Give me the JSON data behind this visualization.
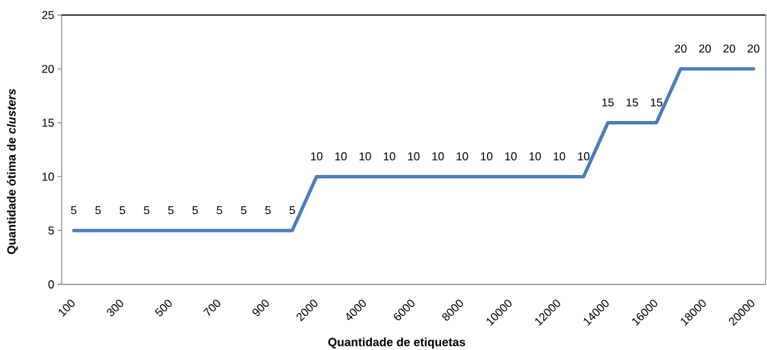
{
  "chart_data": {
    "type": "line",
    "xlabel": "Quantidade de etiquetas",
    "ylabel": "Quantidade ótima de *clusters*",
    "categories": [
      "100",
      null,
      "300",
      null,
      "500",
      null,
      "700",
      null,
      "900",
      null,
      "2000",
      null,
      "4000",
      null,
      "6000",
      null,
      "8000",
      null,
      "10000",
      null,
      "12000",
      null,
      "14000",
      null,
      "16000",
      null,
      "18000",
      null,
      "20000"
    ],
    "values": [
      5,
      5,
      5,
      5,
      5,
      5,
      5,
      5,
      5,
      5,
      10,
      10,
      10,
      10,
      10,
      10,
      10,
      10,
      10,
      10,
      10,
      10,
      15,
      15,
      15,
      20,
      20,
      20,
      20
    ],
    "color": "#4a7ebb",
    "ylim": [
      0,
      25
    ],
    "yticks": [
      0,
      5,
      10,
      15,
      20,
      25
    ],
    "data_labels": true,
    "marker": "none",
    "line_style": "solid"
  }
}
